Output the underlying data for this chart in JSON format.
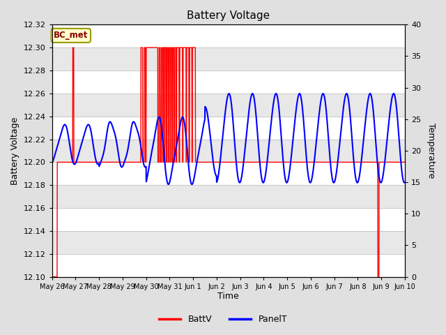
{
  "title": "Battery Voltage",
  "xlabel": "Time",
  "ylabel_left": "Battery Voltage",
  "ylabel_right": "Temperature",
  "ylim_left": [
    12.1,
    12.32
  ],
  "ylim_right": [
    0,
    40
  ],
  "fig_bg_color": "#E0E0E0",
  "plot_bg_color": "#E8E8E8",
  "stripe_color_light": "#F0F0F0",
  "stripe_color_dark": "#E0E0E0",
  "x_labels": [
    "May 26",
    "May 27",
    "May 28",
    "May 29",
    "May 30",
    "May 31",
    "Jun 1",
    "Jun 2",
    "Jun 3",
    "Jun 4",
    "Jun 5",
    "Jun 6",
    "Jun 7",
    "Jun 8",
    "Jun 9",
    "Jun 10"
  ],
  "legend_label": "BC_met",
  "legend_text_color": "#8B0000",
  "legend_bg_color": "#FFFFCC",
  "legend_border_color": "#999900",
  "batt_color": "#FF0000",
  "panel_color": "#0000FF",
  "batt_label": "BattV",
  "panel_label": "PanelT",
  "left_yticks": [
    12.1,
    12.12,
    12.14,
    12.16,
    12.18,
    12.2,
    12.22,
    12.24,
    12.26,
    12.28,
    12.3,
    12.32
  ],
  "right_yticks": [
    0,
    5,
    10,
    15,
    20,
    25,
    30,
    35,
    40
  ]
}
